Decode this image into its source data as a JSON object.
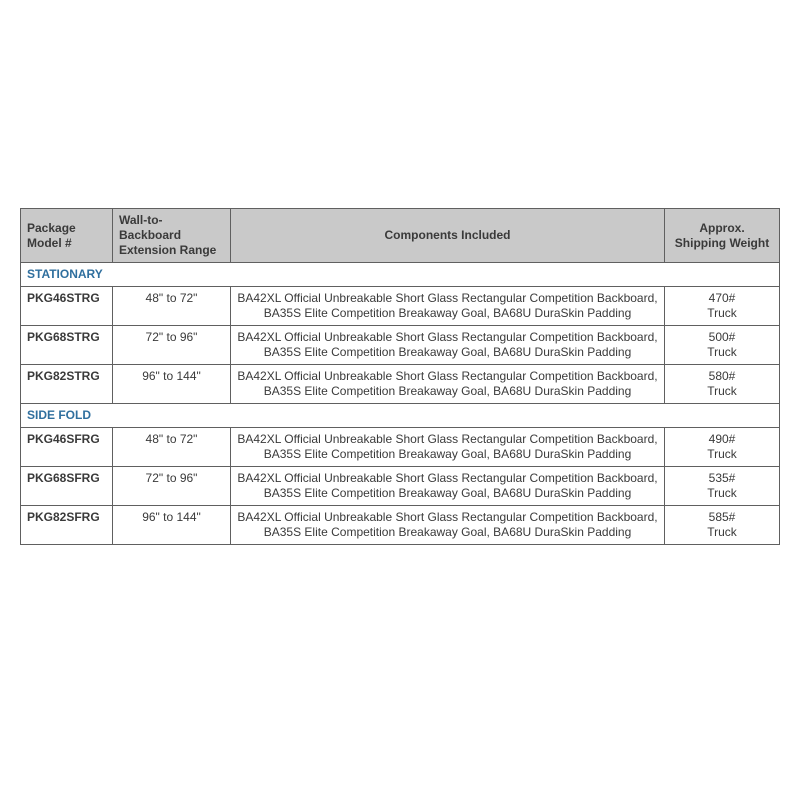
{
  "table": {
    "headers": {
      "model": "Package\nModel #",
      "range": "Wall-to-Backboard\nExtension Range",
      "components": "Components Included",
      "shipping": "Approx.\nShipping Weight"
    },
    "sections": [
      {
        "title": "STATIONARY",
        "rows": [
          {
            "model": "PKG46STRG",
            "range": "48\" to 72\"",
            "components": "BA42XL Official Unbreakable Short Glass Rectangular Competition Backboard,\nBA35S Elite Competition Breakaway Goal, BA68U DuraSkin Padding",
            "shipping": "470#\nTruck"
          },
          {
            "model": "PKG68STRG",
            "range": "72\" to 96\"",
            "components": "BA42XL Official Unbreakable Short Glass Rectangular Competition Backboard,\nBA35S Elite Competition Breakaway Goal, BA68U DuraSkin Padding",
            "shipping": "500#\nTruck"
          },
          {
            "model": "PKG82STRG",
            "range": "96\" to 144\"",
            "components": "BA42XL Official Unbreakable Short Glass Rectangular Competition Backboard,\nBA35S Elite Competition Breakaway Goal, BA68U DuraSkin Padding",
            "shipping": "580#\nTruck"
          }
        ]
      },
      {
        "title": "SIDE FOLD",
        "rows": [
          {
            "model": "PKG46SFRG",
            "range": "48\" to 72\"",
            "components": "BA42XL Official Unbreakable Short Glass Rectangular Competition Backboard,\nBA35S Elite Competition Breakaway Goal, BA68U DuraSkin Padding",
            "shipping": "490#\nTruck"
          },
          {
            "model": "PKG68SFRG",
            "range": "72\" to 96\"",
            "components": "BA42XL Official Unbreakable Short Glass Rectangular Competition Backboard,\nBA35S Elite Competition Breakaway Goal, BA68U DuraSkin Padding",
            "shipping": "535#\nTruck"
          },
          {
            "model": "PKG82SFRG",
            "range": "96\" to 144\"",
            "components": "BA42XL Official Unbreakable Short Glass Rectangular Competition Backboard,\nBA35S Elite Competition Breakaway Goal, BA68U DuraSkin Padding",
            "shipping": "585#\nTruck"
          }
        ]
      }
    ]
  }
}
